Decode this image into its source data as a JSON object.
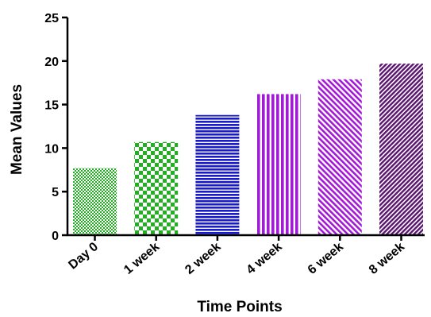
{
  "chart_data": {
    "type": "bar",
    "xlabel": "Time Points",
    "ylabel": "Mean Values",
    "ylim": [
      0,
      25
    ],
    "yticks": [
      0,
      5,
      10,
      15,
      20,
      25
    ],
    "categories": [
      "Day 0",
      "1 week",
      "2 week",
      "4 week",
      "6 week",
      "8 week"
    ],
    "values": [
      7.7,
      10.7,
      13.8,
      16.2,
      17.9,
      19.7
    ],
    "bar_colors": [
      "#22b022",
      "#22b022",
      "#1a1acd",
      "#a31ad6",
      "#a31ad6",
      "#5a1470"
    ],
    "bar_patterns": [
      "fine-dots",
      "checkerboard",
      "horizontal-stripes",
      "vertical-stripes",
      "diagonal-stripes",
      "dense-diagonal-stripes"
    ],
    "grid": false,
    "legend": "none"
  }
}
